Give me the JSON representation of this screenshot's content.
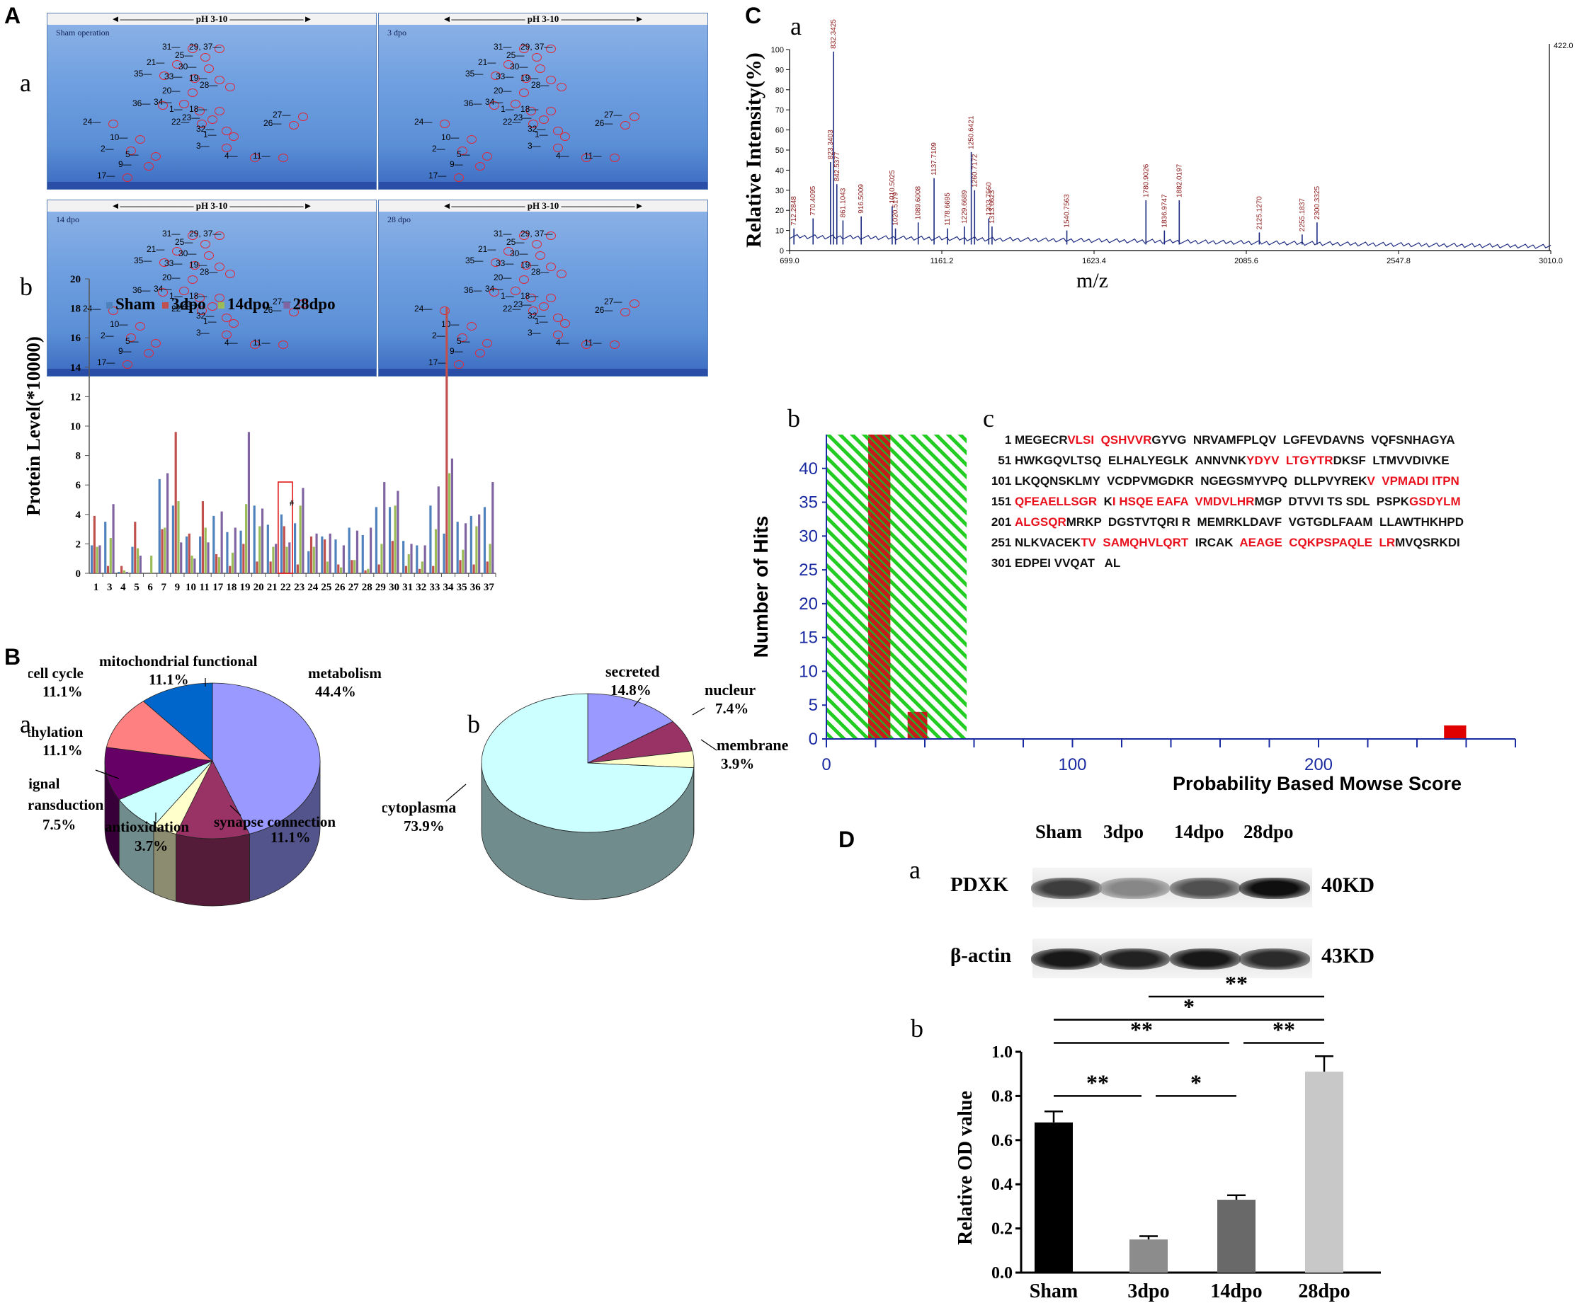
{
  "panels": {
    "A": "A",
    "B": "B",
    "C": "C",
    "D": "D",
    "sub_a": "a",
    "sub_b": "b",
    "sub_c": "c"
  },
  "gels": {
    "ph_label": "pH 3-10",
    "titles": [
      "Sham operation",
      "3 dpo",
      "14 dpo",
      "28 dpo"
    ],
    "spot_labels": [
      "31",
      "29, 37",
      "25",
      "21",
      "30",
      "35",
      "33",
      "19",
      "28",
      "20",
      "36",
      "34",
      "1",
      "18",
      "23",
      "22",
      "24",
      "32",
      "1",
      "27",
      "26",
      "10",
      "3",
      "2",
      "5",
      "4",
      "9",
      "11",
      "17"
    ]
  },
  "chart_data": [
    {
      "id": "A-b",
      "type": "bar",
      "title": "",
      "ylabel": "Protein Level(*10000)",
      "xlabel": "",
      "ylim": [
        0,
        20
      ],
      "yticks": [
        0,
        2,
        4,
        6,
        8,
        10,
        12,
        14,
        16,
        18,
        20
      ],
      "categories": [
        "1",
        "3",
        "4",
        "5",
        "6",
        "7",
        "9",
        "10",
        "11",
        "17",
        "18",
        "19",
        "20",
        "21",
        "22",
        "23",
        "24",
        "25",
        "26",
        "27",
        "28",
        "29",
        "30",
        "31",
        "32",
        "33",
        "34",
        "35",
        "36",
        "37"
      ],
      "series": [
        {
          "name": "Sham",
          "color": "#4f81bd",
          "values": [
            1.9,
            3.5,
            0.1,
            1.8,
            0,
            6.4,
            4.6,
            2.5,
            2.5,
            3.9,
            2.8,
            2.9,
            4.6,
            3.3,
            4.0,
            3.4,
            1.5,
            2.5,
            2.3,
            3.1,
            2.6,
            4.5,
            4.5,
            2.2,
            1.9,
            4.6,
            2.7,
            3.5,
            3.9,
            4.5
          ]
        },
        {
          "name": "3dpo",
          "color": "#c0504d",
          "values": [
            3.9,
            0.5,
            0.5,
            3.5,
            0,
            3.0,
            9.6,
            2.7,
            4.9,
            1.3,
            0.5,
            2.0,
            0.8,
            0.8,
            3.2,
            0.6,
            2.5,
            2.3,
            0.6,
            0.9,
            0.2,
            0.6,
            2.2,
            0.5,
            0.3,
            0.5,
            18.1,
            0.9,
            0.6,
            0.8
          ]
        },
        {
          "name": "14dpo",
          "color": "#9bbb59",
          "values": [
            1.8,
            2.4,
            0.2,
            1.7,
            1.2,
            3.1,
            4.9,
            1.2,
            3.1,
            1.1,
            1.4,
            4.7,
            3.2,
            1.8,
            1.8,
            4.6,
            1.8,
            0.8,
            0.4,
            0.9,
            0.3,
            2.0,
            4.6,
            1.3,
            0.8,
            3.0,
            6.8,
            1.6,
            3.2,
            2.0
          ]
        },
        {
          "name": "28dpo",
          "color": "#8064a2",
          "values": [
            1.9,
            4.7,
            0.1,
            1.2,
            0,
            6.8,
            2.1,
            1.0,
            2.1,
            4.2,
            3.1,
            9.6,
            4.4,
            2.0,
            2.1,
            5.8,
            2.7,
            2.7,
            1.9,
            2.9,
            3.1,
            6.2,
            5.6,
            2.0,
            1.9,
            5.9,
            7.8,
            3.4,
            4.0,
            6.2
          ]
        }
      ],
      "highlight_category": "22",
      "highlight_mark": "#"
    },
    {
      "id": "B-a",
      "type": "pie",
      "title": "",
      "slices": [
        {
          "label": "metabolism",
          "value": 44.4,
          "text": "44.4%",
          "color": "#9999ff"
        },
        {
          "label": "synapse connection",
          "value": 11.1,
          "text": "11.1%",
          "color": "#993366"
        },
        {
          "label": "antioxidation",
          "value": 3.7,
          "text": "3.7%",
          "color": "#ffffcc"
        },
        {
          "label": "signal transduction",
          "value": 7.5,
          "text": "7.5%",
          "color": "#ccffff"
        },
        {
          "label": "methylation",
          "value": 11.1,
          "text": "11.1%",
          "color": "#660066"
        },
        {
          "label": "cell cycle",
          "value": 11.1,
          "text": "11.1%",
          "color": "#ff8080"
        },
        {
          "label": "mitochondrial functional",
          "value": 11.1,
          "text": "11.1%",
          "color": "#0066cc"
        }
      ]
    },
    {
      "id": "B-b",
      "type": "pie",
      "title": "",
      "slices": [
        {
          "label": "secreted",
          "value": 14.8,
          "text": "14.8%",
          "color": "#9999ff"
        },
        {
          "label": "nucleur",
          "value": 7.4,
          "text": "7.4%",
          "color": "#993366"
        },
        {
          "label": "membrane",
          "value": 3.9,
          "text": "3.9%",
          "color": "#ffffcc"
        },
        {
          "label": "cytoplasma",
          "value": 73.9,
          "text": "73.9%",
          "color": "#ccffff"
        }
      ]
    },
    {
      "id": "C-a",
      "type": "line",
      "title": "",
      "xlabel": "m/z",
      "ylabel": "Relative Intensity(%)",
      "xlim": [
        699.0,
        3010.0
      ],
      "ylim": [
        0,
        100
      ],
      "xticks": [
        "699.0",
        "1161.2",
        "1623.4",
        "2085.6",
        "2547.8",
        "3010.0"
      ],
      "yticks": [
        0,
        10,
        20,
        30,
        40,
        50,
        60,
        70,
        80,
        90,
        100
      ],
      "max_label": "422.0",
      "peaks": [
        {
          "mz": 712.2848,
          "i": 11,
          "label": "712.2848"
        },
        {
          "mz": 770.4095,
          "i": 16,
          "label": "770.4095"
        },
        {
          "mz": 823.3403,
          "i": 44,
          "label": "823.3403"
        },
        {
          "mz": 832.3425,
          "i": 99,
          "label": "832.3425"
        },
        {
          "mz": 842.5377,
          "i": 33,
          "label": "842.5377"
        },
        {
          "mz": 861.1043,
          "i": 15,
          "label": "861.1043"
        },
        {
          "mz": 916.5009,
          "i": 17,
          "label": "916.5009"
        },
        {
          "mz": 1010.5025,
          "i": 22,
          "label": "1010.5025"
        },
        {
          "mz": 1020.5179,
          "i": 11,
          "label": "1020.5179"
        },
        {
          "mz": 1089.6008,
          "i": 14,
          "label": "1089.6008"
        },
        {
          "mz": 1137.7109,
          "i": 36,
          "label": "1137.7109"
        },
        {
          "mz": 1178.6695,
          "i": 11,
          "label": "1178.6695"
        },
        {
          "mz": 1229.6689,
          "i": 12,
          "label": "1229.6689"
        },
        {
          "mz": 1250.6421,
          "i": 49,
          "label": "1250.6421"
        },
        {
          "mz": 1260.7172,
          "i": 30,
          "label": "1260.7172"
        },
        {
          "mz": 1313.6623,
          "i": 12,
          "label": "1313.6623"
        },
        {
          "mz": 1303.756,
          "i": 16,
          "label": "1303.7560"
        },
        {
          "mz": 1540.7563,
          "i": 10,
          "label": "1540.7563"
        },
        {
          "mz": 1780.9026,
          "i": 25,
          "label": "1780.9026"
        },
        {
          "mz": 1836.9747,
          "i": 10,
          "label": "1836.9747"
        },
        {
          "mz": 1882.0197,
          "i": 25,
          "label": "1882.0197"
        },
        {
          "mz": 2125.127,
          "i": 9,
          "label": "2125.1270"
        },
        {
          "mz": 2255.1837,
          "i": 8,
          "label": "2255.1837"
        },
        {
          "mz": 2300.3325,
          "i": 14,
          "label": "2300.3325"
        }
      ]
    },
    {
      "id": "C-b",
      "type": "bar",
      "title": "",
      "xlabel": "Probability Based Mowse Score",
      "ylabel": "Number of Hits",
      "xlim": [
        0,
        280
      ],
      "ylim": [
        0,
        45
      ],
      "xticks": [
        0,
        100,
        200
      ],
      "yticks": [
        0,
        5,
        10,
        15,
        20,
        25,
        30,
        35,
        40
      ],
      "shaded_range": [
        0,
        57
      ],
      "bars": [
        {
          "x_start": 17,
          "x_end": 26,
          "hits": 45
        },
        {
          "x_start": 33,
          "x_end": 41,
          "hits": 4
        },
        {
          "x_start": 251,
          "x_end": 260,
          "hits": 2
        }
      ]
    },
    {
      "id": "D-b",
      "type": "bar",
      "title": "",
      "xlabel": "",
      "ylabel": "Relative OD value",
      "ylim": [
        0,
        1.0
      ],
      "yticks": [
        "0.0",
        "0.2",
        "0.4",
        "0.6",
        "0.8",
        "1.0"
      ],
      "categories": [
        "Sham",
        "3dpo",
        "14dpo",
        "28dpo"
      ],
      "values": [
        0.68,
        0.15,
        0.33,
        0.91
      ],
      "errors": [
        0.05,
        0.015,
        0.02,
        0.07
      ],
      "colors": [
        "#000000",
        "#8c8c8c",
        "#696969",
        "#c8c8c8"
      ],
      "significance": [
        {
          "from": "Sham",
          "to": "3dpo",
          "mark": "**"
        },
        {
          "from": "3dpo",
          "to": "14dpo",
          "mark": "*"
        },
        {
          "from": "Sham",
          "to": "14dpo",
          "mark": "**"
        },
        {
          "from": "14dpo",
          "to": "28dpo",
          "mark": "**"
        },
        {
          "from": "Sham",
          "to": "28dpo",
          "mark": "*"
        },
        {
          "from": "3dpo",
          "to": "28dpo",
          "mark": "**"
        }
      ]
    }
  ],
  "sequence": [
    {
      "n": "1",
      "parts": [
        [
          "MEGECR",
          0
        ],
        [
          "VLSI",
          1
        ],
        [
          "  ",
          0
        ],
        [
          "QSHVVR",
          1
        ],
        [
          "GYVG  NRVAMFPLQV  LGFEVDAVNS  VQFSNHAGYA",
          0
        ]
      ]
    },
    {
      "n": "51",
      "parts": [
        [
          "HWKGQVLTSQ  ELHALYEGLK  ANNVNK",
          0
        ],
        [
          "YDYV  LTGYTR",
          1
        ],
        [
          "DKSF  LTMVVDIVKE",
          0
        ]
      ]
    },
    {
      "n": "101",
      "parts": [
        [
          "LKQQNSKLMY  VCDPVMGDKR  NGEGSMYVPQ  DLLPVYREK",
          0
        ],
        [
          "V  VPMADI ITPN",
          1
        ]
      ]
    },
    {
      "n": "151",
      "parts": [
        [
          "QFEAELLSGR",
          1
        ],
        [
          "  K",
          0
        ],
        [
          "I HSQE EAFA  VMDVLHR",
          1
        ],
        [
          "MGP  DTVVI TS SDL  PSPK",
          0
        ],
        [
          "GSDYLM",
          1
        ]
      ]
    },
    {
      "n": "201",
      "parts": [
        [
          "ALGSQR",
          1
        ],
        [
          "MRKP  DGSTVTQRI R  MEMRKLDAVF  VGTGDLFAAM  LLAWTHKHPD",
          0
        ]
      ]
    },
    {
      "n": "251",
      "parts": [
        [
          "NLKVACEK",
          0
        ],
        [
          "TV  SAMQHVLQRT",
          1
        ],
        [
          "  IRCAK  ",
          0
        ],
        [
          "AEAGE  CQKPSPAQLE  LR",
          1
        ],
        [
          "MVQSRKDI",
          0
        ]
      ]
    },
    {
      "n": "301",
      "parts": [
        [
          "EDPEI VVQAT   AL",
          0
        ]
      ]
    }
  ],
  "western": {
    "lanes": [
      "Sham",
      "3dpo",
      "14dpo",
      "28dpo"
    ],
    "rows": [
      {
        "protein": "PDXK",
        "size": "40KD",
        "intensity": [
          0.75,
          0.35,
          0.65,
          1.0
        ]
      },
      {
        "protein": "β-actin",
        "size": "43KD",
        "intensity": [
          0.95,
          0.9,
          0.95,
          0.85
        ]
      }
    ]
  }
}
